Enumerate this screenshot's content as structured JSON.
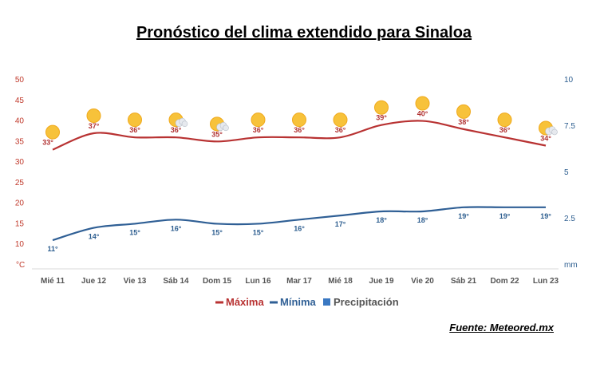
{
  "title": "Pronóstico del clima extendido para Sinaloa",
  "source": "Fuente: Meteored.mx",
  "chart_data": {
    "type": "line",
    "categories": [
      "Mié 11",
      "Jue 12",
      "Vie 13",
      "Sáb 14",
      "Dom 15",
      "Lun 16",
      "Mar 17",
      "Mié 18",
      "Jue 19",
      "Vie 20",
      "Sáb 21",
      "Dom 22",
      "Lun 23"
    ],
    "series": [
      {
        "name": "Máxima",
        "color": "#b83232",
        "values": [
          33,
          37,
          36,
          36,
          35,
          36,
          36,
          36,
          39,
          40,
          38,
          36,
          34
        ]
      },
      {
        "name": "Mínima",
        "color": "#2f5f95",
        "values": [
          11,
          14,
          15,
          16,
          15,
          15,
          16,
          17,
          18,
          18,
          19,
          19,
          19
        ]
      }
    ],
    "precipitation": {
      "name": "Precipitación",
      "color": "#3a78c2"
    },
    "y_left": {
      "unit": "°C",
      "ticks": [
        10,
        15,
        20,
        25,
        30,
        35,
        40,
        45,
        50
      ],
      "range": [
        5,
        50
      ]
    },
    "y_right": {
      "unit": "mm",
      "ticks": [
        "2.5",
        "5",
        "7.5",
        "10"
      ],
      "range": [
        0,
        10
      ]
    },
    "value_suffix": "°",
    "icons": [
      "sun-icon",
      "sun-icon",
      "sun-icon",
      "sun-cloud-icon",
      "sun-cloud-icon",
      "sun-icon",
      "sun-icon",
      "sun-icon",
      "sun-icon",
      "sun-icon",
      "sun-icon",
      "sun-icon",
      "sun-cloud-icon"
    ],
    "legend_placement": "bottom-center",
    "grid": false
  }
}
